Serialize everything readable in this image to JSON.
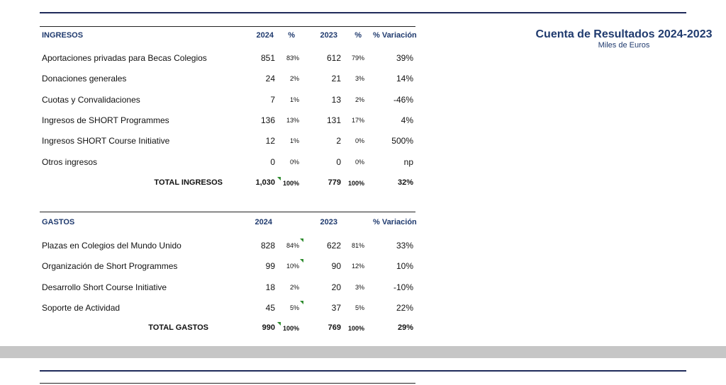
{
  "report": {
    "title": "Cuenta de Resultados 2024-2023",
    "subtitle": "Miles de Euros"
  },
  "ingresos": {
    "header": {
      "section": "INGRESOS",
      "y2024": "2024",
      "pct1": "%",
      "y2023": "2023",
      "pct2": "%",
      "variation": "% Variación"
    },
    "rows": [
      {
        "label": "Aportaciones privadas para Becas Colegios",
        "v2024": "851",
        "p2024": "83%",
        "v2023": "612",
        "p2023": "79%",
        "var": "39%"
      },
      {
        "label": "Donaciones generales",
        "v2024": "24",
        "p2024": "2%",
        "v2023": "21",
        "p2023": "3%",
        "var": "14%"
      },
      {
        "label": "Cuotas y Convalidaciones",
        "v2024": "7",
        "p2024": "1%",
        "v2023": "13",
        "p2023": "2%",
        "var": "-46%"
      },
      {
        "label": "Ingresos de SHORT Programmes",
        "v2024": "136",
        "p2024": "13%",
        "v2023": "131",
        "p2023": "17%",
        "var": "4%"
      },
      {
        "label": "Ingresos SHORT Course Initiative",
        "v2024": "12",
        "p2024": "1%",
        "v2023": "2",
        "p2023": "0%",
        "var": "500%"
      },
      {
        "label": "Otros ingresos",
        "v2024": "0",
        "p2024": "0%",
        "v2023": "0",
        "p2023": "0%",
        "var": "np"
      }
    ],
    "total": {
      "label": "TOTAL INGRESOS",
      "v2024": "1,030",
      "p2024": "100%",
      "v2023": "779",
      "p2023": "100%",
      "var": "32%"
    }
  },
  "gastos": {
    "header": {
      "section": "GASTOS",
      "y2024": "2024",
      "y2023": "2023",
      "variation": "% Variación"
    },
    "rows": [
      {
        "label": "Plazas en Colegios del Mundo Unido",
        "v2024": "828",
        "p2024": "84%",
        "v2023": "622",
        "p2023": "81%",
        "var": "33%"
      },
      {
        "label": "Organización de Short Programmes",
        "v2024": "99",
        "p2024": "10%",
        "v2023": "90",
        "p2023": "12%",
        "var": "10%"
      },
      {
        "label": "Desarrollo Short Course Initiative",
        "v2024": "18",
        "p2024": "2%",
        "v2023": "20",
        "p2023": "3%",
        "var": "-10%"
      },
      {
        "label": "Soporte de Actividad",
        "v2024": "45",
        "p2024": "5%",
        "v2023": "37",
        "p2023": "5%",
        "var": "22%"
      }
    ],
    "total": {
      "label": "TOTAL GASTOS",
      "v2024": "990",
      "p2024": "100%",
      "v2023": "769",
      "p2023": "100%",
      "var": "29%"
    }
  },
  "colors": {
    "navy": "#1f2a5a",
    "title": "#1f3a6e",
    "band": "#c6c6c6",
    "comment_marker": "#2e8b2e"
  }
}
